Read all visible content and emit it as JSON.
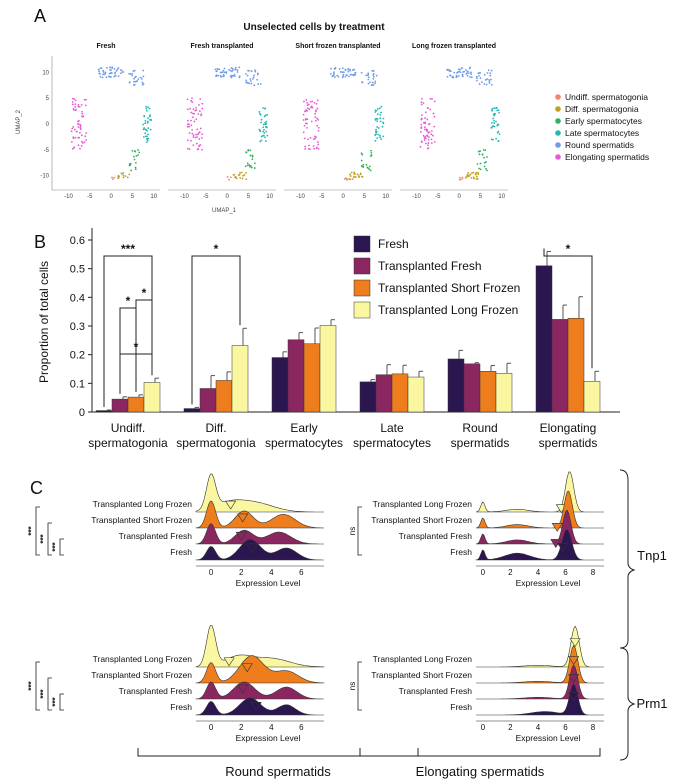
{
  "panels": {
    "a": "A",
    "b": "B",
    "c": "C"
  },
  "umap": {
    "title": "Unselected cells by treatment",
    "facets": [
      "Fresh",
      "Fresh transplanted",
      "Short frozen transplanted",
      "Long frozen transplanted"
    ],
    "x_ticks": [
      "-10",
      "-5",
      "0",
      "5",
      "10"
    ],
    "y_ticks": [
      "10",
      "5",
      "0",
      "-5",
      "-10"
    ],
    "xlabel": "UMAP_1",
    "ylabel": "UMAP_2",
    "legend": [
      {
        "label": "Undiff. spermatogonia",
        "color": "#f4846a"
      },
      {
        "label": "Diff. spermatogonia",
        "color": "#c0a020"
      },
      {
        "label": "Early spermatocytes",
        "color": "#2fb15a"
      },
      {
        "label": "Late spermatocytes",
        "color": "#22b8b4"
      },
      {
        "label": "Round spermatids",
        "color": "#6f9be8"
      },
      {
        "label": "Elongating spermatids",
        "color": "#e45ad6"
      }
    ]
  },
  "chart_data": {
    "type": "bar",
    "ylabel": "Proportion of total cells",
    "ylim": [
      0,
      0.6
    ],
    "y_ticks": [
      "0",
      "0.1",
      "0.2",
      "0.3",
      "0.4",
      "0.5",
      "0.6"
    ],
    "categories": [
      [
        "Undiff.",
        "spermatogonia"
      ],
      [
        "Diff.",
        "spermatogonia"
      ],
      [
        "Early",
        "spermatocytes"
      ],
      [
        "Late",
        "spermatocytes"
      ],
      [
        "Round",
        "spermatids"
      ],
      [
        "Elongating",
        "spermatids"
      ]
    ],
    "series": [
      {
        "name": "Fresh",
        "color": "#2b1650",
        "values": [
          0.005,
          0.012,
          0.19,
          0.105,
          0.185,
          0.51
        ],
        "errors": [
          0.002,
          0.004,
          0.02,
          0.008,
          0.03,
          0.05
        ]
      },
      {
        "name": "Transplanted Fresh",
        "color": "#8b2760",
        "values": [
          0.045,
          0.082,
          0.252,
          0.13,
          0.168,
          0.323
        ],
        "errors": [
          0.008,
          0.045,
          0.025,
          0.035,
          0.004,
          0.05
        ]
      },
      {
        "name": "Transplanted Short Frozen",
        "color": "#ed7d1d",
        "values": [
          0.052,
          0.11,
          0.238,
          0.133,
          0.142,
          0.327
        ],
        "errors": [
          0.008,
          0.03,
          0.055,
          0.03,
          0.02,
          0.075
        ]
      },
      {
        "name": "Transplanted Long Frozen",
        "color": "#fbf7a0",
        "values": [
          0.103,
          0.232,
          0.302,
          0.122,
          0.135,
          0.107
        ],
        "errors": [
          0.015,
          0.06,
          0.02,
          0.02,
          0.035,
          0.035
        ]
      }
    ],
    "significance": [
      "***",
      "*",
      "*",
      "*",
      "*",
      "*"
    ]
  },
  "ridges": {
    "xlabel": "Expression Level",
    "left_ticks": [
      "0",
      "2",
      "4",
      "6"
    ],
    "right_ticks": [
      "0",
      "2",
      "4",
      "6",
      "8"
    ],
    "rows": [
      "Transplanted Long Frozen",
      "Transplanted Short Frozen",
      "Transplanted Fresh",
      "Fresh"
    ],
    "genes": [
      "Tnp1",
      "Prm1"
    ],
    "bottom_labels": [
      "Round spermatids",
      "Elongating spermatids"
    ],
    "sig_left": "***",
    "sig_right": "ns"
  }
}
